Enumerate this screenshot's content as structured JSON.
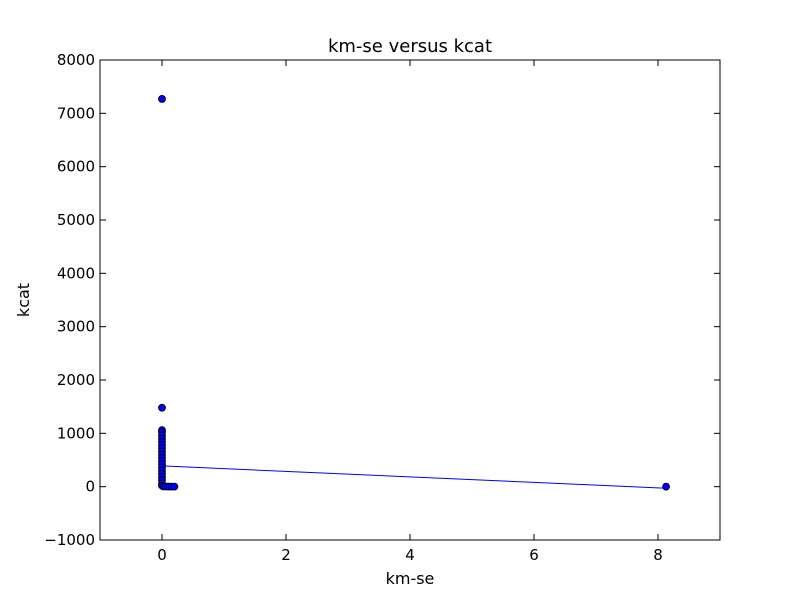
{
  "chart_data": {
    "type": "scatter",
    "title": "km-se versus kcat",
    "xlabel": "km-se",
    "ylabel": "kcat",
    "xlim": [
      -1,
      9
    ],
    "ylim": [
      -1000,
      8000
    ],
    "x_ticks": [
      0,
      2,
      4,
      6,
      8
    ],
    "x_tick_labels": [
      "0",
      "2",
      "4",
      "6",
      "8"
    ],
    "y_ticks": [
      -1000,
      0,
      1000,
      2000,
      3000,
      4000,
      5000,
      6000,
      7000,
      8000
    ],
    "y_tick_labels": [
      "−1000",
      "0",
      "1000",
      "2000",
      "3000",
      "4000",
      "5000",
      "6000",
      "7000",
      "8000"
    ],
    "grid": false,
    "legend": "none",
    "marker_color": "#0000ff",
    "line_color": "#0000ff",
    "points": [
      {
        "x": 0.0,
        "y": 7270
      },
      {
        "x": 0.0,
        "y": 1480
      },
      {
        "x": 0.0,
        "y": 1060
      },
      {
        "x": 0.0,
        "y": 1020
      },
      {
        "x": 0.0,
        "y": 960
      },
      {
        "x": 0.0,
        "y": 900
      },
      {
        "x": 0.0,
        "y": 840
      },
      {
        "x": 0.0,
        "y": 780
      },
      {
        "x": 0.0,
        "y": 720
      },
      {
        "x": 0.0,
        "y": 660
      },
      {
        "x": 0.0,
        "y": 600
      },
      {
        "x": 0.0,
        "y": 540
      },
      {
        "x": 0.0,
        "y": 480
      },
      {
        "x": 0.0,
        "y": 420
      },
      {
        "x": 0.0,
        "y": 360
      },
      {
        "x": 0.0,
        "y": 300
      },
      {
        "x": 0.0,
        "y": 240
      },
      {
        "x": 0.0,
        "y": 180
      },
      {
        "x": 0.0,
        "y": 120
      },
      {
        "x": 0.0,
        "y": 60
      },
      {
        "x": 0.0,
        "y": 20
      },
      {
        "x": 0.02,
        "y": 5
      },
      {
        "x": 0.05,
        "y": 3
      },
      {
        "x": 0.1,
        "y": 2
      },
      {
        "x": 0.15,
        "y": 1
      },
      {
        "x": 0.2,
        "y": 1
      },
      {
        "x": 8.13,
        "y": 0
      }
    ],
    "fit_line": {
      "x": [
        0,
        8.13
      ],
      "y": [
        390,
        -30
      ]
    }
  }
}
